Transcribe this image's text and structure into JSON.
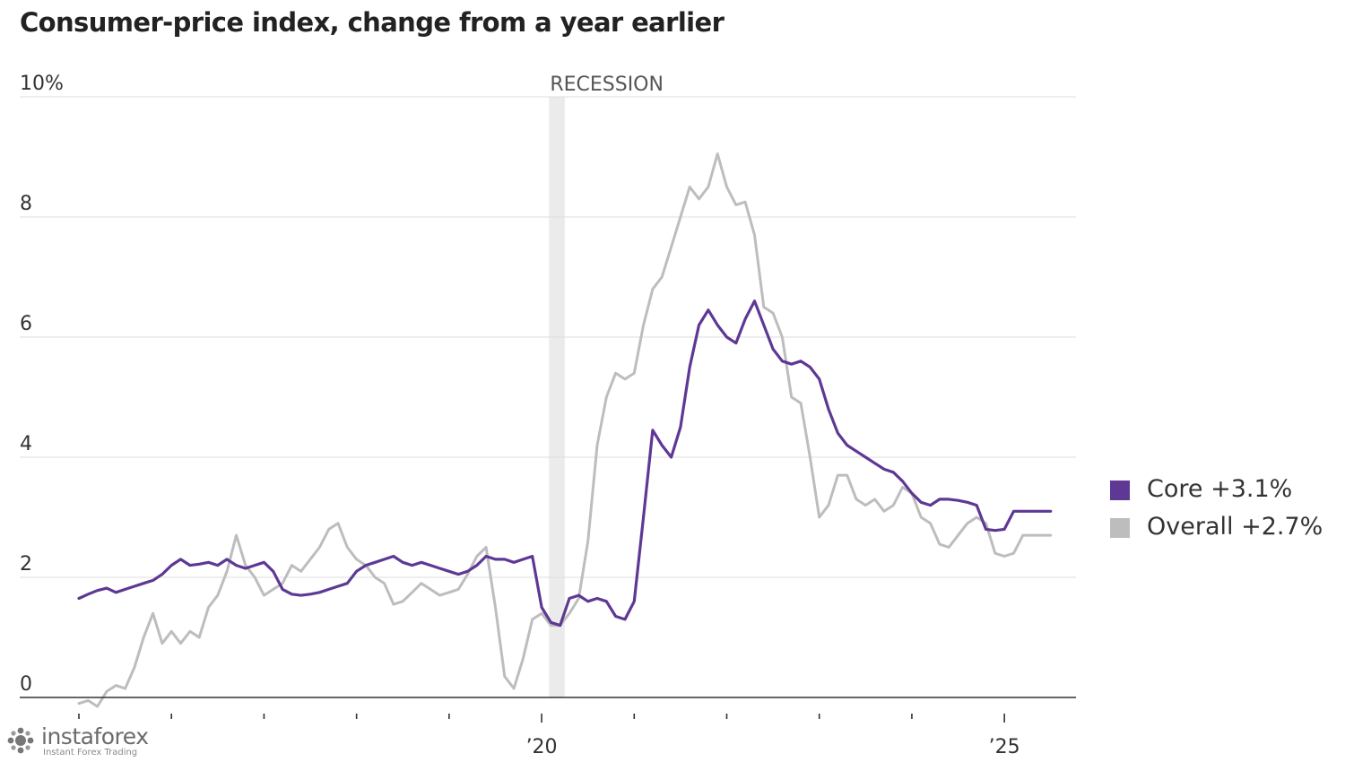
{
  "chart_data": {
    "type": "line",
    "title": "Consumer-price index, change from a year earlier",
    "xlabel": "",
    "ylabel": "",
    "ylim": [
      0,
      10
    ],
    "y_ticks": [
      0,
      2,
      4,
      6,
      8,
      10
    ],
    "y_tick_labels": [
      "0",
      "2",
      "4",
      "6",
      "8",
      "10%"
    ],
    "xlim": [
      2015.0,
      2025.58
    ],
    "x_ticks": [
      2015,
      2016,
      2017,
      2018,
      2019,
      2020,
      2021,
      2022,
      2023,
      2024,
      2025
    ],
    "x_tick_labels": [
      {
        "x": 2020,
        "label": "’20"
      },
      {
        "x": 2025,
        "label": "’25"
      }
    ],
    "grid": true,
    "legend_position": "right",
    "annotations": [
      {
        "text": "RECESSION",
        "x_start": 2020.08,
        "x_end": 2020.25
      }
    ],
    "series": [
      {
        "name": "Core",
        "legend_label": "Core +3.1%",
        "color": "#5e3894",
        "x": [
          2015.0,
          2015.1,
          2015.2,
          2015.3,
          2015.4,
          2015.5,
          2015.6,
          2015.7,
          2015.8,
          2015.9,
          2016.0,
          2016.1,
          2016.2,
          2016.3,
          2016.4,
          2016.5,
          2016.6,
          2016.7,
          2016.8,
          2016.9,
          2017.0,
          2017.1,
          2017.2,
          2017.3,
          2017.4,
          2017.5,
          2017.6,
          2017.7,
          2017.8,
          2017.9,
          2018.0,
          2018.1,
          2018.2,
          2018.3,
          2018.4,
          2018.5,
          2018.6,
          2018.7,
          2018.8,
          2018.9,
          2019.0,
          2019.1,
          2019.2,
          2019.3,
          2019.4,
          2019.5,
          2019.6,
          2019.7,
          2019.8,
          2019.9,
          2020.0,
          2020.1,
          2020.2,
          2020.3,
          2020.4,
          2020.5,
          2020.6,
          2020.7,
          2020.8,
          2020.9,
          2021.0,
          2021.1,
          2021.2,
          2021.3,
          2021.4,
          2021.5,
          2021.6,
          2021.7,
          2021.8,
          2021.9,
          2022.0,
          2022.1,
          2022.2,
          2022.3,
          2022.4,
          2022.5,
          2022.6,
          2022.7,
          2022.8,
          2022.9,
          2023.0,
          2023.1,
          2023.2,
          2023.3,
          2023.4,
          2023.5,
          2023.6,
          2023.7,
          2023.8,
          2023.9,
          2024.0,
          2024.1,
          2024.2,
          2024.3,
          2024.4,
          2024.5,
          2024.6,
          2024.7,
          2024.8,
          2024.9,
          2025.0,
          2025.1,
          2025.2,
          2025.3,
          2025.4,
          2025.5
        ],
        "values": [
          1.65,
          1.72,
          1.78,
          1.82,
          1.75,
          1.8,
          1.85,
          1.9,
          1.95,
          2.05,
          2.2,
          2.3,
          2.2,
          2.22,
          2.25,
          2.2,
          2.3,
          2.2,
          2.15,
          2.2,
          2.25,
          2.1,
          1.8,
          1.72,
          1.7,
          1.72,
          1.75,
          1.8,
          1.85,
          1.9,
          2.1,
          2.2,
          2.25,
          2.3,
          2.35,
          2.25,
          2.2,
          2.25,
          2.2,
          2.15,
          2.1,
          2.05,
          2.1,
          2.2,
          2.35,
          2.3,
          2.3,
          2.25,
          2.3,
          2.35,
          1.5,
          1.25,
          1.2,
          1.65,
          1.7,
          1.6,
          1.65,
          1.6,
          1.35,
          1.3,
          1.6,
          3.0,
          4.45,
          4.2,
          4.0,
          4.5,
          5.5,
          6.2,
          6.45,
          6.2,
          6.0,
          5.9,
          6.3,
          6.6,
          6.2,
          5.8,
          5.6,
          5.55,
          5.6,
          5.5,
          5.3,
          4.8,
          4.4,
          4.2,
          4.1,
          4.0,
          3.9,
          3.8,
          3.75,
          3.6,
          3.4,
          3.25,
          3.2,
          3.3,
          3.3,
          3.28,
          3.25,
          3.2,
          2.8,
          2.78,
          2.8,
          3.1,
          3.1,
          3.1,
          3.1,
          3.1
        ]
      },
      {
        "name": "Overall",
        "legend_label": "Overall +2.7%",
        "color": "#bdbdbd",
        "x": [
          2015.0,
          2015.1,
          2015.2,
          2015.3,
          2015.4,
          2015.5,
          2015.6,
          2015.7,
          2015.8,
          2015.9,
          2016.0,
          2016.1,
          2016.2,
          2016.3,
          2016.4,
          2016.5,
          2016.6,
          2016.7,
          2016.8,
          2016.9,
          2017.0,
          2017.1,
          2017.2,
          2017.3,
          2017.4,
          2017.5,
          2017.6,
          2017.7,
          2017.8,
          2017.9,
          2018.0,
          2018.1,
          2018.2,
          2018.3,
          2018.4,
          2018.5,
          2018.6,
          2018.7,
          2018.8,
          2018.9,
          2019.0,
          2019.1,
          2019.2,
          2019.3,
          2019.4,
          2019.5,
          2019.6,
          2019.7,
          2019.8,
          2019.9,
          2020.0,
          2020.1,
          2020.2,
          2020.3,
          2020.4,
          2020.5,
          2020.6,
          2020.7,
          2020.8,
          2020.9,
          2021.0,
          2021.1,
          2021.2,
          2021.3,
          2021.4,
          2021.5,
          2021.6,
          2021.7,
          2021.8,
          2021.9,
          2022.0,
          2022.1,
          2022.2,
          2022.3,
          2022.4,
          2022.5,
          2022.6,
          2022.7,
          2022.8,
          2022.9,
          2023.0,
          2023.1,
          2023.2,
          2023.3,
          2023.4,
          2023.5,
          2023.6,
          2023.7,
          2023.8,
          2023.9,
          2024.0,
          2024.1,
          2024.2,
          2024.3,
          2024.4,
          2024.5,
          2024.6,
          2024.7,
          2024.8,
          2024.9,
          2025.0,
          2025.1,
          2025.2,
          2025.3,
          2025.4,
          2025.5
        ],
        "values": [
          -0.1,
          -0.05,
          -0.15,
          0.1,
          0.2,
          0.15,
          0.5,
          1.0,
          1.4,
          0.9,
          1.1,
          0.9,
          1.1,
          1.0,
          1.5,
          1.7,
          2.1,
          2.7,
          2.2,
          2.0,
          1.7,
          1.8,
          1.9,
          2.2,
          2.1,
          2.3,
          2.5,
          2.8,
          2.9,
          2.5,
          2.3,
          2.2,
          2.0,
          1.9,
          1.55,
          1.6,
          1.75,
          1.9,
          1.8,
          1.7,
          1.75,
          1.8,
          2.05,
          2.35,
          2.5,
          1.5,
          0.35,
          0.15,
          0.65,
          1.3,
          1.4,
          1.2,
          1.2,
          1.4,
          1.65,
          2.6,
          4.2,
          5.0,
          5.4,
          5.3,
          5.4,
          6.2,
          6.8,
          7.0,
          7.5,
          8.0,
          8.5,
          8.3,
          8.5,
          9.05,
          8.5,
          8.2,
          8.25,
          7.7,
          6.5,
          6.4,
          6.0,
          5.0,
          4.9,
          4.0,
          3.0,
          3.2,
          3.7,
          3.7,
          3.3,
          3.2,
          3.3,
          3.1,
          3.2,
          3.5,
          3.4,
          3.0,
          2.9,
          2.55,
          2.5,
          2.7,
          2.9,
          3.0,
          2.9,
          2.4,
          2.35,
          2.4,
          2.7,
          2.7,
          2.7,
          2.7
        ]
      }
    ]
  },
  "watermark": {
    "brand": "instaforex",
    "tagline": "Instant Forex Trading"
  }
}
